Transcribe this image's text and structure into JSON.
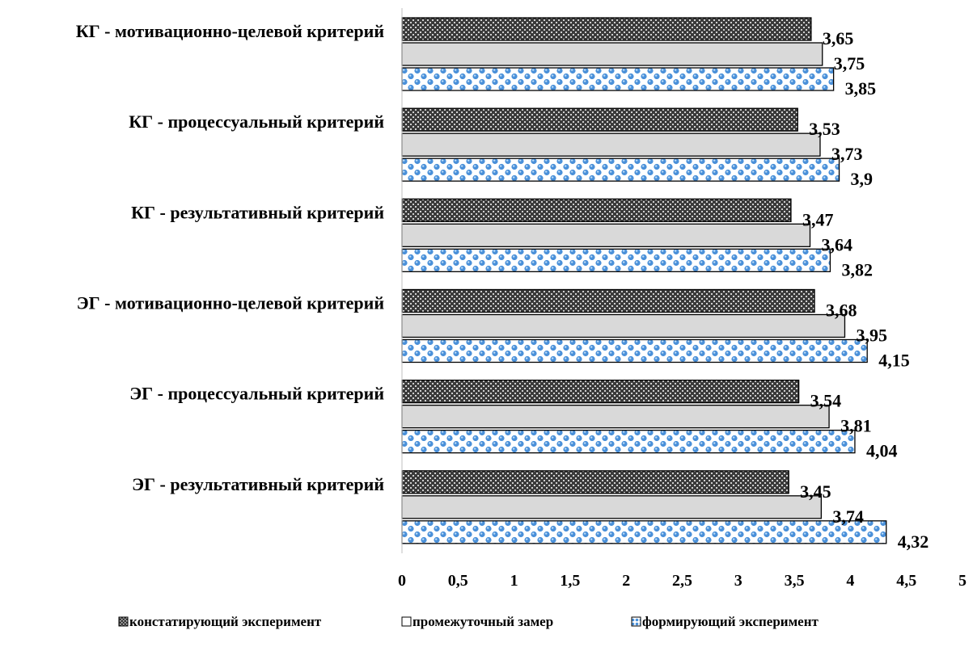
{
  "chart_data": {
    "type": "bar",
    "orientation": "horizontal",
    "title": "",
    "xlabel": "",
    "ylabel": "",
    "categories": [
      "КГ - мотивационно-целевой критерий",
      "КГ - процессуальный критерий",
      "КГ - результативный критерий",
      "ЭГ - мотивационно-целевой критерий",
      "ЭГ - процессуальный критерий",
      "ЭГ - результативный критерий"
    ],
    "series": [
      {
        "name": "констатирующий эксперимент",
        "values": [
          3.65,
          3.53,
          3.47,
          3.68,
          3.54,
          3.45
        ],
        "labels": [
          "3,65",
          "3,53",
          "3,47",
          "3,68",
          "3,54",
          "3,45"
        ],
        "pattern": "dark-crosshatch",
        "color": "#555555"
      },
      {
        "name": "промежуточный замер",
        "values": [
          3.75,
          3.73,
          3.64,
          3.95,
          3.81,
          3.74
        ],
        "labels": [
          "3,75",
          "3,73",
          "3,64",
          "3,95",
          "3,81",
          "3,74"
        ],
        "pattern": "solid",
        "color": "#d9d9d9"
      },
      {
        "name": "формирующий эксперимент",
        "values": [
          3.85,
          3.9,
          3.82,
          4.15,
          4.04,
          4.32
        ],
        "labels": [
          "3,85",
          "3,9",
          "3,82",
          "4,15",
          "4,04",
          "4,32"
        ],
        "pattern": "blue-dots",
        "color": "#5b9bd5"
      }
    ],
    "xlim": [
      0,
      5
    ],
    "xticks": [
      "0",
      "0,5",
      "1",
      "1,5",
      "2",
      "2,5",
      "3",
      "3,5",
      "4",
      "4,5",
      "5"
    ],
    "grid": false,
    "legend_position": "bottom"
  }
}
